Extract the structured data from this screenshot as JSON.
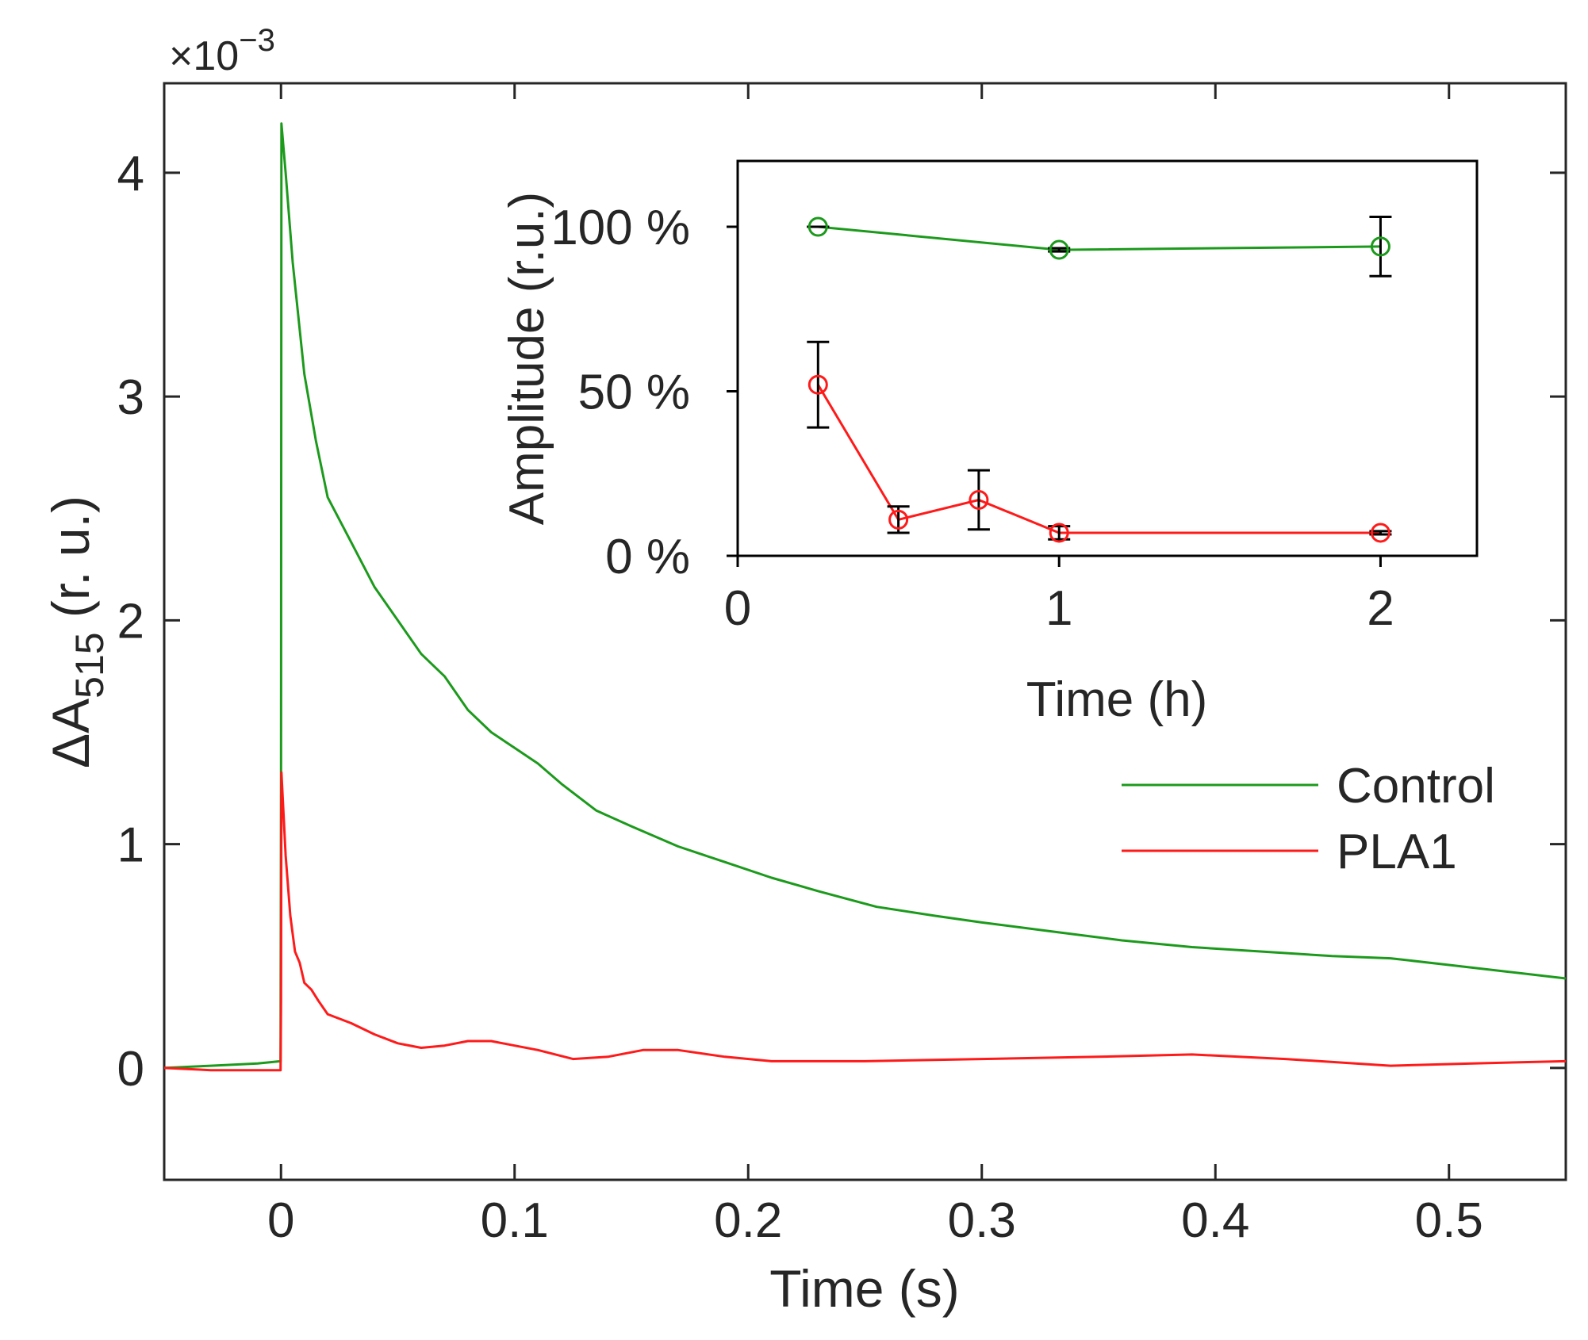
{
  "chart_data": [
    {
      "type": "line",
      "role": "main",
      "title": "",
      "xlabel": "Time (s)",
      "ylabel_prefix": "ΔA",
      "ylabel_subscript": "515",
      "ylabel_suffix": " (r. u.)",
      "ylabel_full": "ΔA515 (r. u.)",
      "xlim": [
        -0.05,
        0.55
      ],
      "ylim": [
        -0.5,
        4.4
      ],
      "y_multiplier_base": "×10",
      "y_multiplier_exp": "−3",
      "x_ticks": [
        0,
        0.1,
        0.2,
        0.3,
        0.4,
        0.5
      ],
      "x_tick_labels": [
        "0",
        "0.1",
        "0.2",
        "0.3",
        "0.4",
        "0.5"
      ],
      "y_ticks": [
        0,
        1,
        2,
        3,
        4
      ],
      "y_tick_labels": [
        "0",
        "1",
        "2",
        "3",
        "4"
      ],
      "grid": false,
      "legend_position": "right-middle",
      "series": [
        {
          "name": "Control",
          "color": "#1c9a1c",
          "x": [
            -0.05,
            -0.03,
            -0.01,
            -0.0002,
            0.0,
            0.0002,
            0.002,
            0.005,
            0.01,
            0.015,
            0.02,
            0.03,
            0.04,
            0.05,
            0.06,
            0.07,
            0.08,
            0.09,
            0.1,
            0.11,
            0.12,
            0.135,
            0.15,
            0.17,
            0.19,
            0.21,
            0.23,
            0.255,
            0.28,
            0.3,
            0.33,
            0.36,
            0.39,
            0.42,
            0.45,
            0.475,
            0.5,
            0.525,
            0.55
          ],
          "y": [
            0.0,
            0.01,
            0.02,
            0.03,
            1.3,
            4.22,
            4.0,
            3.6,
            3.1,
            2.8,
            2.55,
            2.35,
            2.15,
            2.0,
            1.85,
            1.75,
            1.6,
            1.5,
            1.43,
            1.36,
            1.27,
            1.15,
            1.08,
            0.99,
            0.92,
            0.85,
            0.79,
            0.72,
            0.68,
            0.65,
            0.61,
            0.57,
            0.54,
            0.52,
            0.5,
            0.49,
            0.46,
            0.43,
            0.4
          ]
        },
        {
          "name": "PLA1",
          "color": "#ff1a1a",
          "x": [
            -0.05,
            -0.03,
            -0.01,
            -0.0002,
            0.0,
            0.0002,
            0.002,
            0.004,
            0.006,
            0.008,
            0.01,
            0.013,
            0.016,
            0.02,
            0.03,
            0.04,
            0.05,
            0.06,
            0.07,
            0.08,
            0.09,
            0.1,
            0.11,
            0.125,
            0.14,
            0.155,
            0.17,
            0.19,
            0.21,
            0.25,
            0.3,
            0.35,
            0.39,
            0.43,
            0.475,
            0.51,
            0.55
          ],
          "y": [
            0.0,
            -0.01,
            -0.01,
            -0.01,
            0.3,
            1.32,
            0.95,
            0.68,
            0.52,
            0.47,
            0.38,
            0.35,
            0.3,
            0.24,
            0.2,
            0.15,
            0.11,
            0.09,
            0.1,
            0.12,
            0.12,
            0.1,
            0.08,
            0.04,
            0.05,
            0.08,
            0.08,
            0.05,
            0.03,
            0.03,
            0.04,
            0.05,
            0.06,
            0.04,
            0.01,
            0.02,
            0.03
          ]
        }
      ]
    },
    {
      "type": "line",
      "role": "inset",
      "title": "",
      "xlabel": "Time (h)",
      "ylabel": "Amplitude (r.u.)",
      "xlim": [
        0,
        2.3
      ],
      "ylim": [
        0,
        120
      ],
      "x_ticks": [
        0,
        1,
        2
      ],
      "x_tick_labels": [
        "0",
        "1",
        "2"
      ],
      "y_ticks": [
        0,
        50,
        100
      ],
      "y_tick_labels": [
        "0 %",
        "50 %",
        "100 %"
      ],
      "grid": false,
      "marker": "circle",
      "series": [
        {
          "name": "Control",
          "color": "#1c9a1c",
          "x": [
            0.25,
            1.0,
            2.0
          ],
          "y": [
            100,
            93,
            94
          ],
          "err": [
            0,
            0.5,
            9
          ]
        },
        {
          "name": "PLA1",
          "color": "#ff1a1a",
          "x": [
            0.25,
            0.5,
            0.75,
            1.0,
            2.0
          ],
          "y": [
            52,
            11,
            17,
            7,
            7
          ],
          "err": [
            13,
            4,
            9,
            2,
            0.5
          ]
        }
      ]
    }
  ]
}
